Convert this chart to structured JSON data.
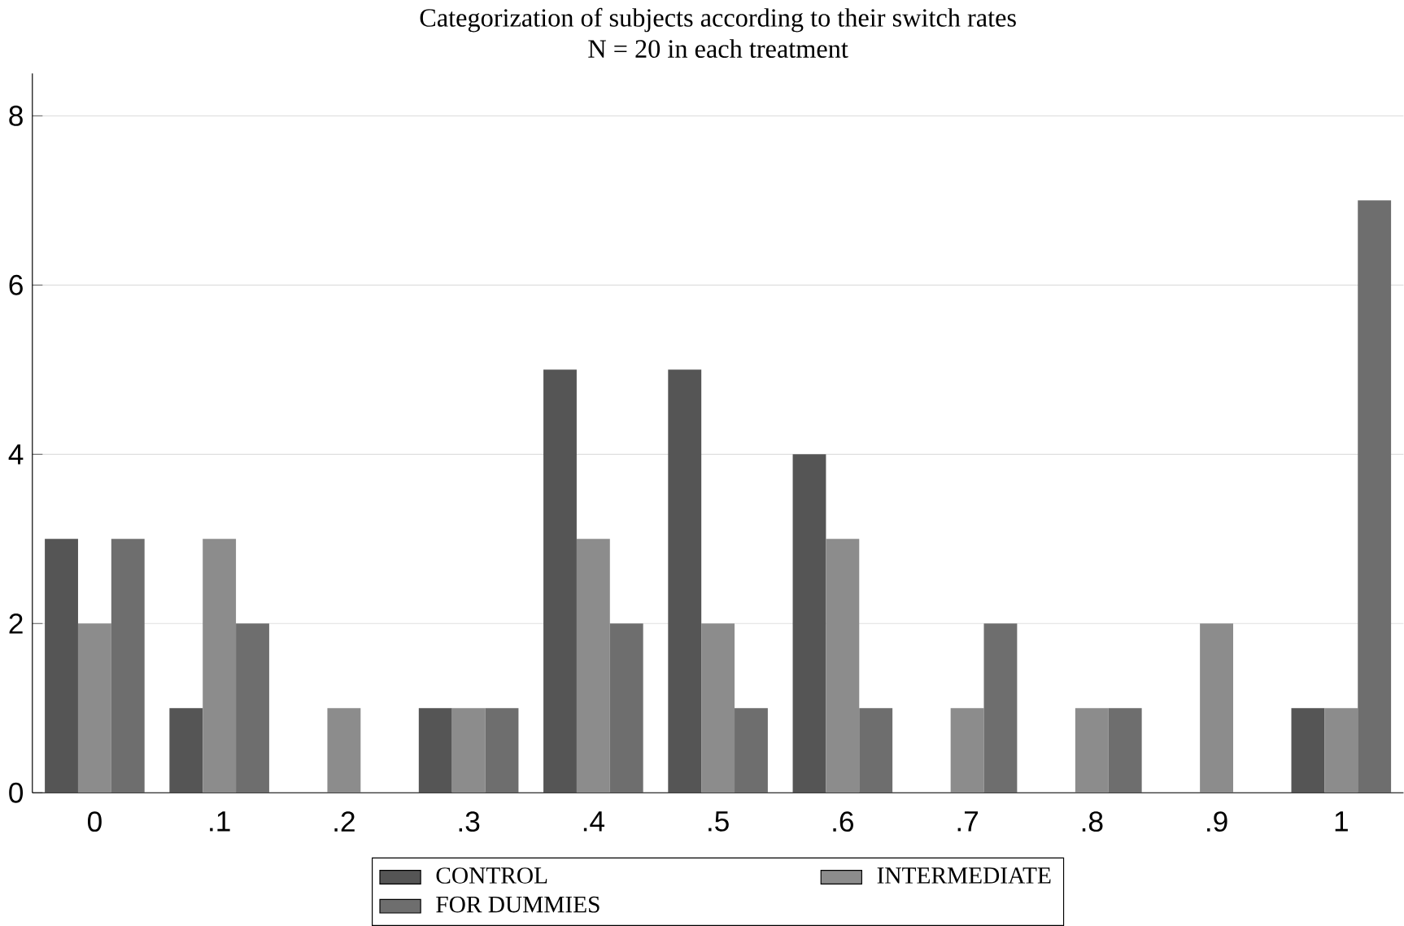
{
  "chart_data": {
    "type": "bar",
    "title": "Categorization of subjects according to their switch rates",
    "subtitle": "N = 20 in each treatment",
    "categories": [
      "0",
      ".1",
      ".2",
      ".3",
      ".4",
      ".5",
      ".6",
      ".7",
      ".8",
      ".9",
      "1"
    ],
    "series": [
      {
        "name": "CONTROL",
        "color": "#555555",
        "values": [
          3,
          1,
          0,
          1,
          5,
          5,
          4,
          0,
          0,
          0,
          1
        ]
      },
      {
        "name": "INTERMEDIATE",
        "color": "#8c8c8c",
        "values": [
          2,
          3,
          1,
          1,
          3,
          2,
          3,
          1,
          1,
          2,
          1
        ]
      },
      {
        "name": "FOR DUMMIES",
        "color": "#6e6e6e",
        "values": [
          3,
          2,
          0,
          1,
          2,
          1,
          1,
          2,
          1,
          0,
          7
        ]
      }
    ],
    "ylim": [
      0,
      8.5
    ],
    "yticks": [
      0,
      2,
      4,
      6,
      8
    ],
    "grid": "y",
    "legend": "bottom"
  }
}
